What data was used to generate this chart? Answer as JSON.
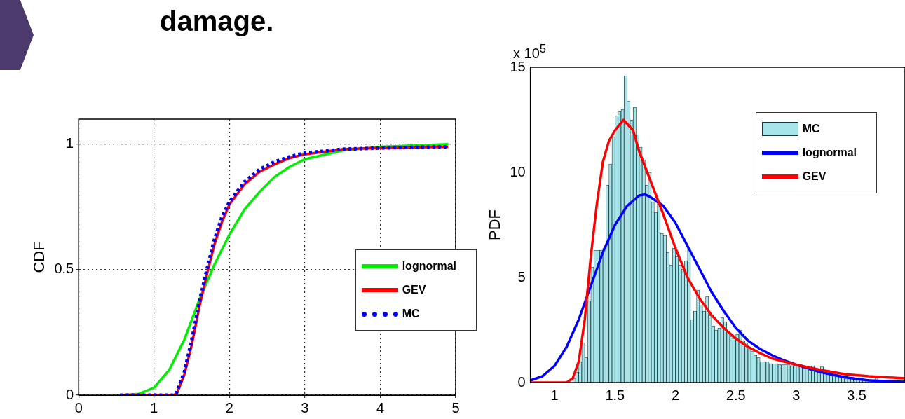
{
  "chart_data": [
    {
      "type": "line",
      "title": "damage.",
      "ylabel": "CDF",
      "xlim": [
        0,
        5
      ],
      "xticks": [
        0,
        1,
        2,
        3,
        4,
        5
      ],
      "ylim": [
        0,
        1.1
      ],
      "yticks": [
        0,
        0.5,
        1
      ],
      "grid": true,
      "legend": "right",
      "series": [
        {
          "name": "lognormal",
          "color": "#00ee00",
          "x": [
            0.55,
            0.8,
            1.0,
            1.2,
            1.4,
            1.6,
            1.8,
            2.0,
            2.2,
            2.4,
            2.6,
            2.8,
            3.0,
            3.5,
            4.0,
            4.9
          ],
          "values": [
            0,
            0.005,
            0.03,
            0.1,
            0.22,
            0.38,
            0.52,
            0.64,
            0.74,
            0.81,
            0.87,
            0.91,
            0.94,
            0.975,
            0.99,
            1.0
          ]
        },
        {
          "name": "GEV",
          "color": "#ff0000",
          "x": [
            0.55,
            1.25,
            1.3,
            1.4,
            1.5,
            1.6,
            1.7,
            1.8,
            1.9,
            2.0,
            2.2,
            2.4,
            2.6,
            2.8,
            3.0,
            3.5,
            4.0,
            4.9
          ],
          "values": [
            0,
            0,
            0.005,
            0.08,
            0.2,
            0.35,
            0.48,
            0.6,
            0.69,
            0.76,
            0.84,
            0.89,
            0.92,
            0.945,
            0.96,
            0.98,
            0.985,
            0.99
          ]
        },
        {
          "name": "MC",
          "color": "#0000ff",
          "line_style": "dotted",
          "x": [
            0.55,
            1.25,
            1.3,
            1.4,
            1.5,
            1.6,
            1.7,
            1.8,
            1.9,
            2.0,
            2.2,
            2.4,
            2.6,
            2.8,
            3.0,
            3.5,
            4.0,
            4.9
          ],
          "values": [
            0,
            0,
            0.01,
            0.09,
            0.22,
            0.37,
            0.5,
            0.62,
            0.71,
            0.77,
            0.85,
            0.9,
            0.93,
            0.95,
            0.965,
            0.98,
            0.985,
            0.99
          ]
        }
      ]
    },
    {
      "type": "histogram",
      "ylabel": "PDF",
      "annotations": [
        "x 10$^{5}$"
      ],
      "xlim": [
        0.8,
        3.9
      ],
      "xticks": [
        1,
        1.5,
        2,
        2.5,
        3,
        3.5
      ],
      "ylim": [
        0,
        15
      ],
      "yticks": [
        0,
        5,
        10,
        15
      ],
      "legend": "top right",
      "series": [
        {
          "name": "MC",
          "type": "histogram",
          "color": "#a6e6ea",
          "bins": [
            1.15,
            1.175,
            1.2,
            1.225,
            1.25,
            1.275,
            1.3,
            1.325,
            1.35,
            1.375,
            1.4,
            1.425,
            1.45,
            1.475,
            1.5,
            1.525,
            1.55,
            1.575,
            1.6,
            1.625,
            1.65,
            1.675,
            1.7,
            1.725,
            1.75,
            1.775,
            1.8,
            1.825,
            1.85,
            1.875,
            1.9,
            1.925,
            1.95,
            1.975,
            2.0,
            2.025,
            2.05,
            2.075,
            2.1,
            2.125,
            2.15,
            2.175,
            2.2,
            2.225,
            2.25,
            2.275,
            2.3,
            2.325,
            2.35,
            2.375,
            2.4,
            2.425,
            2.45,
            2.475,
            2.5,
            2.525,
            2.55,
            2.575,
            2.6,
            2.625,
            2.65,
            2.675,
            2.7,
            2.725,
            2.75,
            2.775,
            2.8,
            2.825,
            2.85,
            2.875,
            2.9,
            2.925,
            2.95,
            2.975,
            3.0,
            3.025,
            3.05,
            3.075,
            3.1,
            3.125,
            3.15,
            3.175,
            3.2,
            3.225,
            3.25,
            3.275,
            3.3,
            3.325,
            3.35,
            3.375,
            3.4,
            3.425,
            3.45,
            3.475,
            3.5,
            3.525,
            3.55,
            3.575,
            3.6,
            3.625,
            3.65,
            3.675,
            3.7,
            3.725
          ],
          "values": [
            0.2,
            0.5,
            1.0,
            1.9,
            1.2,
            3.9,
            5.5,
            6.3,
            6.3,
            6.3,
            6.4,
            9.4,
            10.4,
            11.7,
            12.7,
            12.9,
            13.0,
            14.6,
            13.4,
            12.5,
            13.1,
            11.8,
            11.2,
            10.6,
            9.4,
            10.0,
            8.6,
            8.1,
            8.7,
            7.1,
            7.0,
            6.2,
            5.6,
            6.4,
            6.0,
            5.6,
            5.4,
            5.8,
            6.4,
            3.0,
            3.4,
            4.4,
            3.7,
            3.4,
            4.1,
            3.2,
            2.7,
            2.5,
            2.6,
            3.1,
            2.9,
            2.4,
            2.2,
            2.1,
            2.3,
            2.5,
            2.0,
            1.9,
            1.7,
            1.5,
            1.3,
            1.2,
            1.0,
            1.0,
            1.0,
            0.9,
            0.9,
            0.9,
            0.85,
            0.85,
            0.85,
            0.85,
            0.8,
            0.9,
            0.9,
            0.85,
            0.8,
            0.7,
            0.6,
            0.8,
            0.7,
            0.5,
            0.75,
            0.55,
            0.6,
            0.5,
            0.45,
            0.4,
            0.35,
            0.3,
            0.3,
            0.25,
            0.25,
            0.2,
            0.2,
            0.2,
            0.15,
            0.15,
            0.15,
            null,
            0.3,
            null,
            null
          ]
        },
        {
          "name": "lognormal",
          "type": "line",
          "color": "#0000ff",
          "x": [
            0.8,
            0.9,
            1.0,
            1.1,
            1.2,
            1.3,
            1.4,
            1.5,
            1.6,
            1.7,
            1.75,
            1.8,
            1.9,
            2.0,
            2.1,
            2.2,
            2.3,
            2.4,
            2.5,
            2.6,
            2.7,
            2.8,
            2.9,
            3.0,
            3.2,
            3.4,
            3.6,
            3.9
          ],
          "values": [
            0.1,
            0.3,
            0.8,
            1.7,
            3.0,
            4.6,
            6.2,
            7.5,
            8.4,
            8.9,
            8.95,
            8.8,
            8.4,
            7.6,
            6.5,
            5.4,
            4.3,
            3.4,
            2.6,
            2.0,
            1.6,
            1.3,
            1.05,
            0.85,
            0.5,
            0.25,
            0.1,
            0.03
          ]
        },
        {
          "name": "GEV",
          "type": "line",
          "color": "#ff0000",
          "x": [
            0.8,
            1.1,
            1.15,
            1.2,
            1.25,
            1.3,
            1.35,
            1.4,
            1.45,
            1.5,
            1.57,
            1.65,
            1.7,
            1.8,
            1.9,
            2.0,
            2.1,
            2.2,
            2.3,
            2.4,
            2.5,
            2.6,
            2.7,
            2.8,
            2.9,
            3.0,
            3.2,
            3.4,
            3.6,
            3.9
          ],
          "values": [
            0,
            0,
            0.2,
            1.0,
            3.0,
            6.0,
            8.5,
            10.5,
            11.5,
            12.0,
            12.5,
            12.0,
            11.0,
            9.5,
            8.0,
            6.4,
            5.0,
            4.0,
            3.2,
            2.6,
            2.1,
            1.7,
            1.4,
            1.15,
            1.0,
            0.85,
            0.6,
            0.4,
            0.3,
            0.2
          ]
        }
      ]
    }
  ]
}
